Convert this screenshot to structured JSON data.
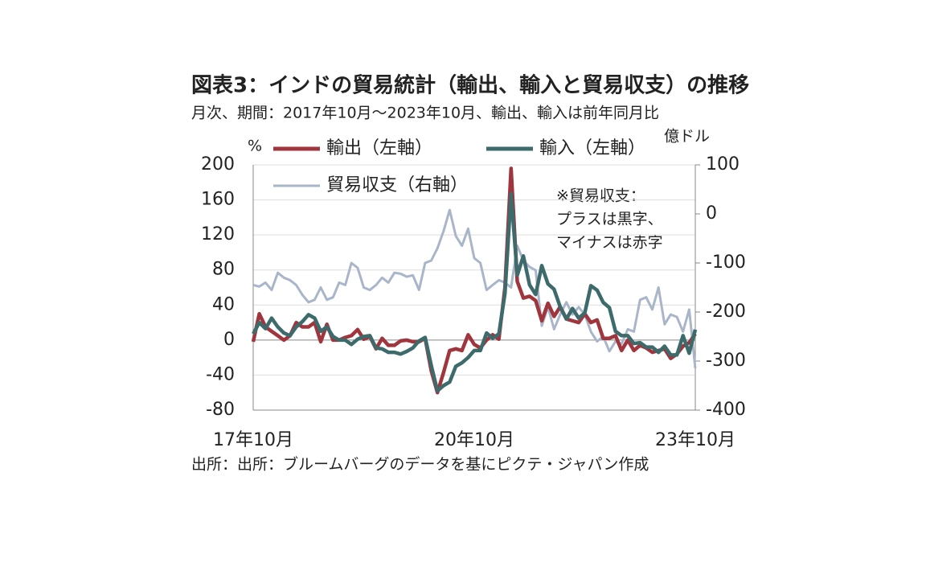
{
  "chart_data": {
    "type": "line",
    "title": "図表3：インドの貿易統計（輸出、輸入と貿易収支）の推移",
    "subtitle": "月次、期間：2017年10月～2023年10月、輸出、輸入は前年同月比",
    "ylabel": "%",
    "y2label": "億ドル",
    "annotation": [
      "※貿易収支：",
      "プラスは黒字、",
      "マイナスは赤字"
    ],
    "source": "出所：出所：ブルームバーグのデータを基にピクテ・ジャパン作成",
    "categories": [
      "17年10月",
      null,
      null,
      null,
      null,
      null,
      null,
      null,
      null,
      null,
      null,
      null,
      null,
      null,
      null,
      null,
      null,
      null,
      null,
      null,
      null,
      null,
      null,
      null,
      null,
      null,
      null,
      null,
      null,
      null,
      null,
      null,
      null,
      null,
      null,
      null,
      "20年10月",
      null,
      null,
      null,
      null,
      null,
      null,
      null,
      null,
      null,
      null,
      null,
      null,
      null,
      null,
      null,
      null,
      null,
      null,
      null,
      null,
      null,
      null,
      null,
      null,
      null,
      null,
      null,
      null,
      null,
      null,
      null,
      null,
      null,
      null,
      null,
      "23年10月"
    ],
    "ylim": [
      -80,
      200
    ],
    "yticks": [
      -80,
      -40,
      0,
      40,
      80,
      120,
      160,
      200
    ],
    "y2lim": [
      -400,
      100
    ],
    "y2ticks": [
      -400,
      -300,
      -200,
      -100,
      0,
      100
    ],
    "grid": true,
    "series": [
      {
        "name": "輸出（左軸）",
        "color": "#a0353d",
        "values": [
          -2,
          30,
          15,
          10,
          5,
          0,
          5,
          20,
          15,
          15,
          20,
          -2,
          18,
          0,
          0,
          3,
          5,
          12,
          1,
          4,
          -10,
          2,
          -6,
          -6,
          -1,
          0,
          -2,
          -2,
          2,
          -35,
          -60,
          -37,
          -12,
          -10,
          -12,
          6,
          -5,
          -9,
          0,
          6,
          1,
          60,
          196,
          67,
          48,
          50,
          45,
          22,
          42,
          27,
          38,
          24,
          22,
          20,
          30,
          20,
          23,
          2,
          2,
          5,
          -12,
          0,
          -12,
          -6,
          -9,
          -14,
          -12,
          -10,
          -21,
          -16,
          -7,
          -3,
          7
        ]
      },
      {
        "name": "輸入（左軸）",
        "color": "#3d6b6b",
        "values": [
          7,
          20,
          13,
          25,
          15,
          8,
          5,
          15,
          21,
          29,
          25,
          10,
          15,
          4,
          0,
          0,
          -5,
          1,
          4,
          5,
          -9,
          -10,
          -14,
          -14,
          -16,
          -13,
          -9,
          -1,
          3,
          -29,
          -58,
          -52,
          -48,
          -30,
          -26,
          -20,
          -12,
          -12,
          8,
          2,
          7,
          53,
          167,
          74,
          96,
          63,
          52,
          85,
          64,
          58,
          38,
          24,
          36,
          25,
          31,
          62,
          57,
          43,
          37,
          10,
          5,
          5,
          -4,
          -3,
          -8,
          -8,
          -14,
          -7,
          -17,
          -17,
          5,
          -15,
          12
        ]
      },
      {
        "name": "貿易収支（右軸）",
        "color": "#a9b5c8",
        "axis": "y2",
        "values": [
          -145,
          -148,
          -140,
          -155,
          -120,
          -130,
          -135,
          -145,
          -165,
          -180,
          -175,
          -150,
          -175,
          -170,
          -140,
          -145,
          -100,
          -110,
          -150,
          -155,
          -145,
          -130,
          -140,
          -120,
          -122,
          -128,
          -125,
          -155,
          -100,
          -95,
          -70,
          -35,
          8,
          -45,
          -65,
          -30,
          -90,
          -100,
          -155,
          -145,
          -135,
          -140,
          -150,
          -65,
          -95,
          -108,
          -115,
          -228,
          -190,
          -235,
          -205,
          -180,
          -205,
          -190,
          -205,
          -240,
          -260,
          -250,
          -280,
          -260,
          -265,
          -235,
          -240,
          -175,
          -170,
          -195,
          -150,
          -225,
          -205,
          -210,
          -240,
          -195,
          -315
        ]
      }
    ]
  }
}
